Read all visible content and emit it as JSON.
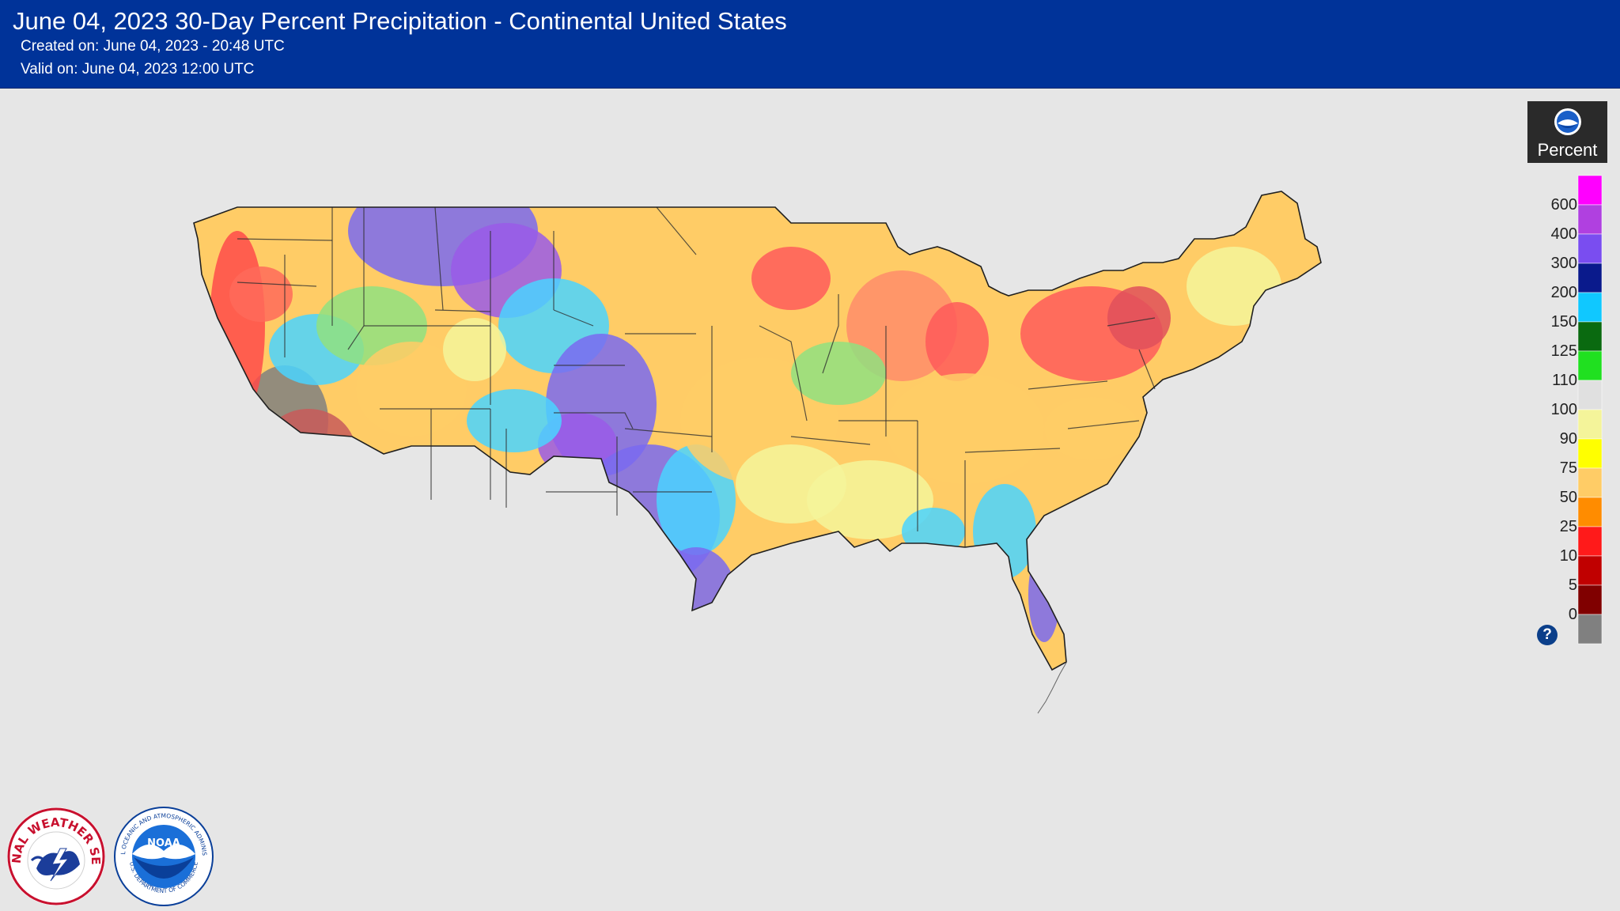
{
  "header": {
    "title": "June 04, 2023 30-Day Percent Precipitation - Continental United States",
    "created": "Created on: June 04, 2023 - 20:48 UTC",
    "valid": "Valid on: June 04, 2023 12:00 UTC"
  },
  "legend": {
    "unit_label": "Percent",
    "ticks": [
      "600",
      "400",
      "300",
      "200",
      "150",
      "125",
      "110",
      "100",
      "90",
      "75",
      "50",
      "25",
      "10",
      "5",
      "0"
    ],
    "bins": [
      {
        "color": "#ff00ff"
      },
      {
        "color": "#b040e0"
      },
      {
        "color": "#7a4df0"
      },
      {
        "color": "#0a1a8c"
      },
      {
        "color": "#10c8ff"
      },
      {
        "color": "#0a6a10"
      },
      {
        "color": "#20e020"
      },
      {
        "color": "#e0e0e0"
      },
      {
        "color": "#f4f49a"
      },
      {
        "color": "#ffff00"
      },
      {
        "color": "#ffcc66"
      },
      {
        "color": "#ff8c00"
      },
      {
        "color": "#ff1a1a"
      },
      {
        "color": "#c00000"
      },
      {
        "color": "#800000"
      },
      {
        "color": "#808080"
      }
    ],
    "help_icon": "question-icon"
  },
  "map": {
    "region": "Continental United States",
    "icons": [
      "nws-logo",
      "noaa-logo"
    ]
  },
  "logos": {
    "nws": {
      "text": "NATIONAL WEATHER SERVICE"
    },
    "noaa": {
      "text": "NATIONAL OCEANIC AND ATMOSPHERIC ADMINISTRATION",
      "bottom_text": "U.S. DEPARTMENT OF COMMERCE",
      "center": "NOAA"
    }
  }
}
